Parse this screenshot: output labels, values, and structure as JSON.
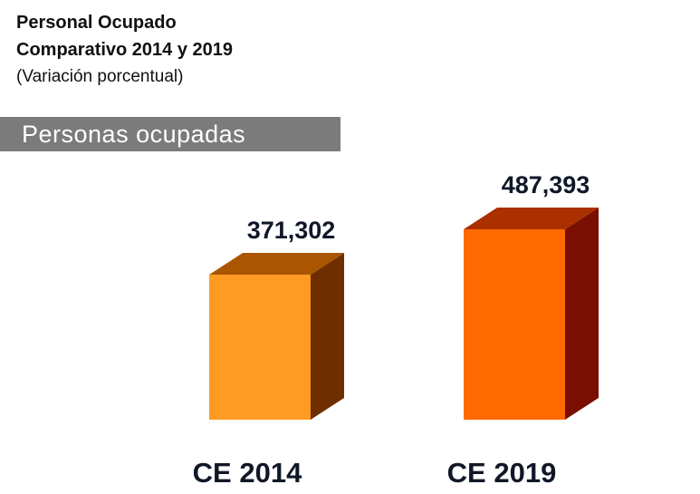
{
  "title": {
    "line1": "Personal Ocupado",
    "line2": "Comparativo 2014 y 2019",
    "line3": "(Variación porcentual)"
  },
  "section_label": "Personas ocupadas",
  "chart_data": {
    "type": "bar",
    "style": "3d-box",
    "categories": [
      "CE 2014",
      "CE 2019"
    ],
    "values": [
      371302,
      487393
    ],
    "value_labels": [
      "371,302",
      "487,393"
    ],
    "ylim": [
      0,
      487393
    ],
    "grid": false,
    "legend": "none",
    "colors": {
      "front": [
        "#ff9a22",
        "#ff6a00"
      ],
      "top": [
        "#aa5600",
        "#aa3000"
      ],
      "side": [
        "#6e2e00",
        "#7a0e00"
      ]
    }
  }
}
